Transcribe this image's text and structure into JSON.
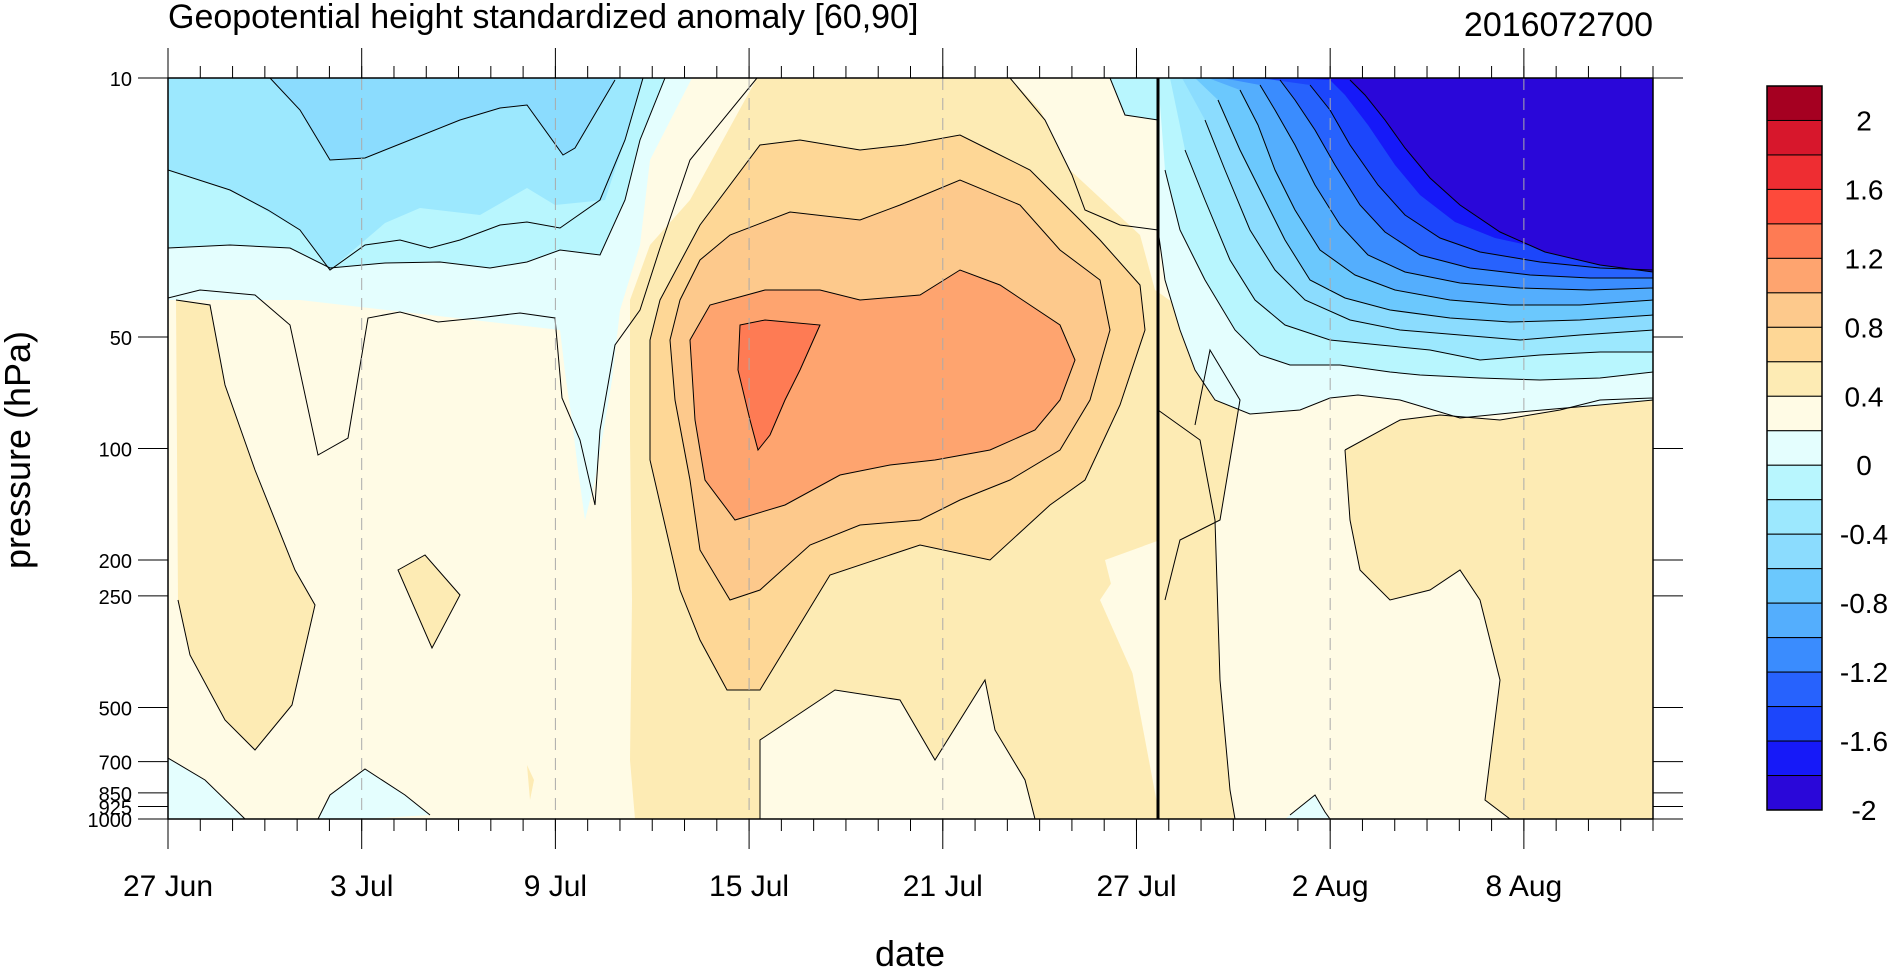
{
  "chart_data": {
    "type": "heatmap",
    "title": "Geopotential height standardized anomaly [60,90]",
    "right_title": "2016072700",
    "xlabel": "date",
    "ylabel": "pressure (hPa)",
    "x_axis": {
      "type": "date",
      "start": "2016-06-27",
      "end": "2016-08-12",
      "tick_labels": [
        "27 Jun",
        "3 Jul",
        "9 Jul",
        "15 Jul",
        "21 Jul",
        "27 Jul",
        "2 Aug",
        "8 Aug"
      ],
      "tick_dates": [
        "2016-06-27",
        "2016-07-03",
        "2016-07-09",
        "2016-07-15",
        "2016-07-21",
        "2016-07-27",
        "2016-08-02",
        "2016-08-08"
      ],
      "marker_line": "2016-07-27"
    },
    "y_axis": {
      "type": "log",
      "reversed": true,
      "range": [
        1000,
        10
      ],
      "tick_labels": [
        "10",
        "50",
        "100",
        "200",
        "250",
        "500",
        "700",
        "850",
        "925",
        "1000"
      ],
      "tick_values": [
        10,
        50,
        100,
        200,
        250,
        500,
        700,
        850,
        925,
        1000
      ]
    },
    "colorbar": {
      "labels": [
        "2",
        "1.6",
        "1.2",
        "0.8",
        "0.4",
        "0",
        "-0.4",
        "-0.8",
        "-1.2",
        "-1.6",
        "-2"
      ],
      "colors": [
        "#a50021",
        "#d7172c",
        "#ee2d32",
        "#fd4a3b",
        "#fe7b54",
        "#fea46f",
        "#fdc98c",
        "#fed796",
        "#fdebb4",
        "#fffbe5",
        "#e4fefe",
        "#b8f6fe",
        "#9ce8fe",
        "#8bdcfe",
        "#6bc8fd",
        "#54aefd",
        "#3a8cfe",
        "#2762fd",
        "#1c46fb",
        "#1619f8",
        "#2a07d9"
      ],
      "placement": "right"
    },
    "grid": "dashed vertical lines at labeled dates"
  }
}
